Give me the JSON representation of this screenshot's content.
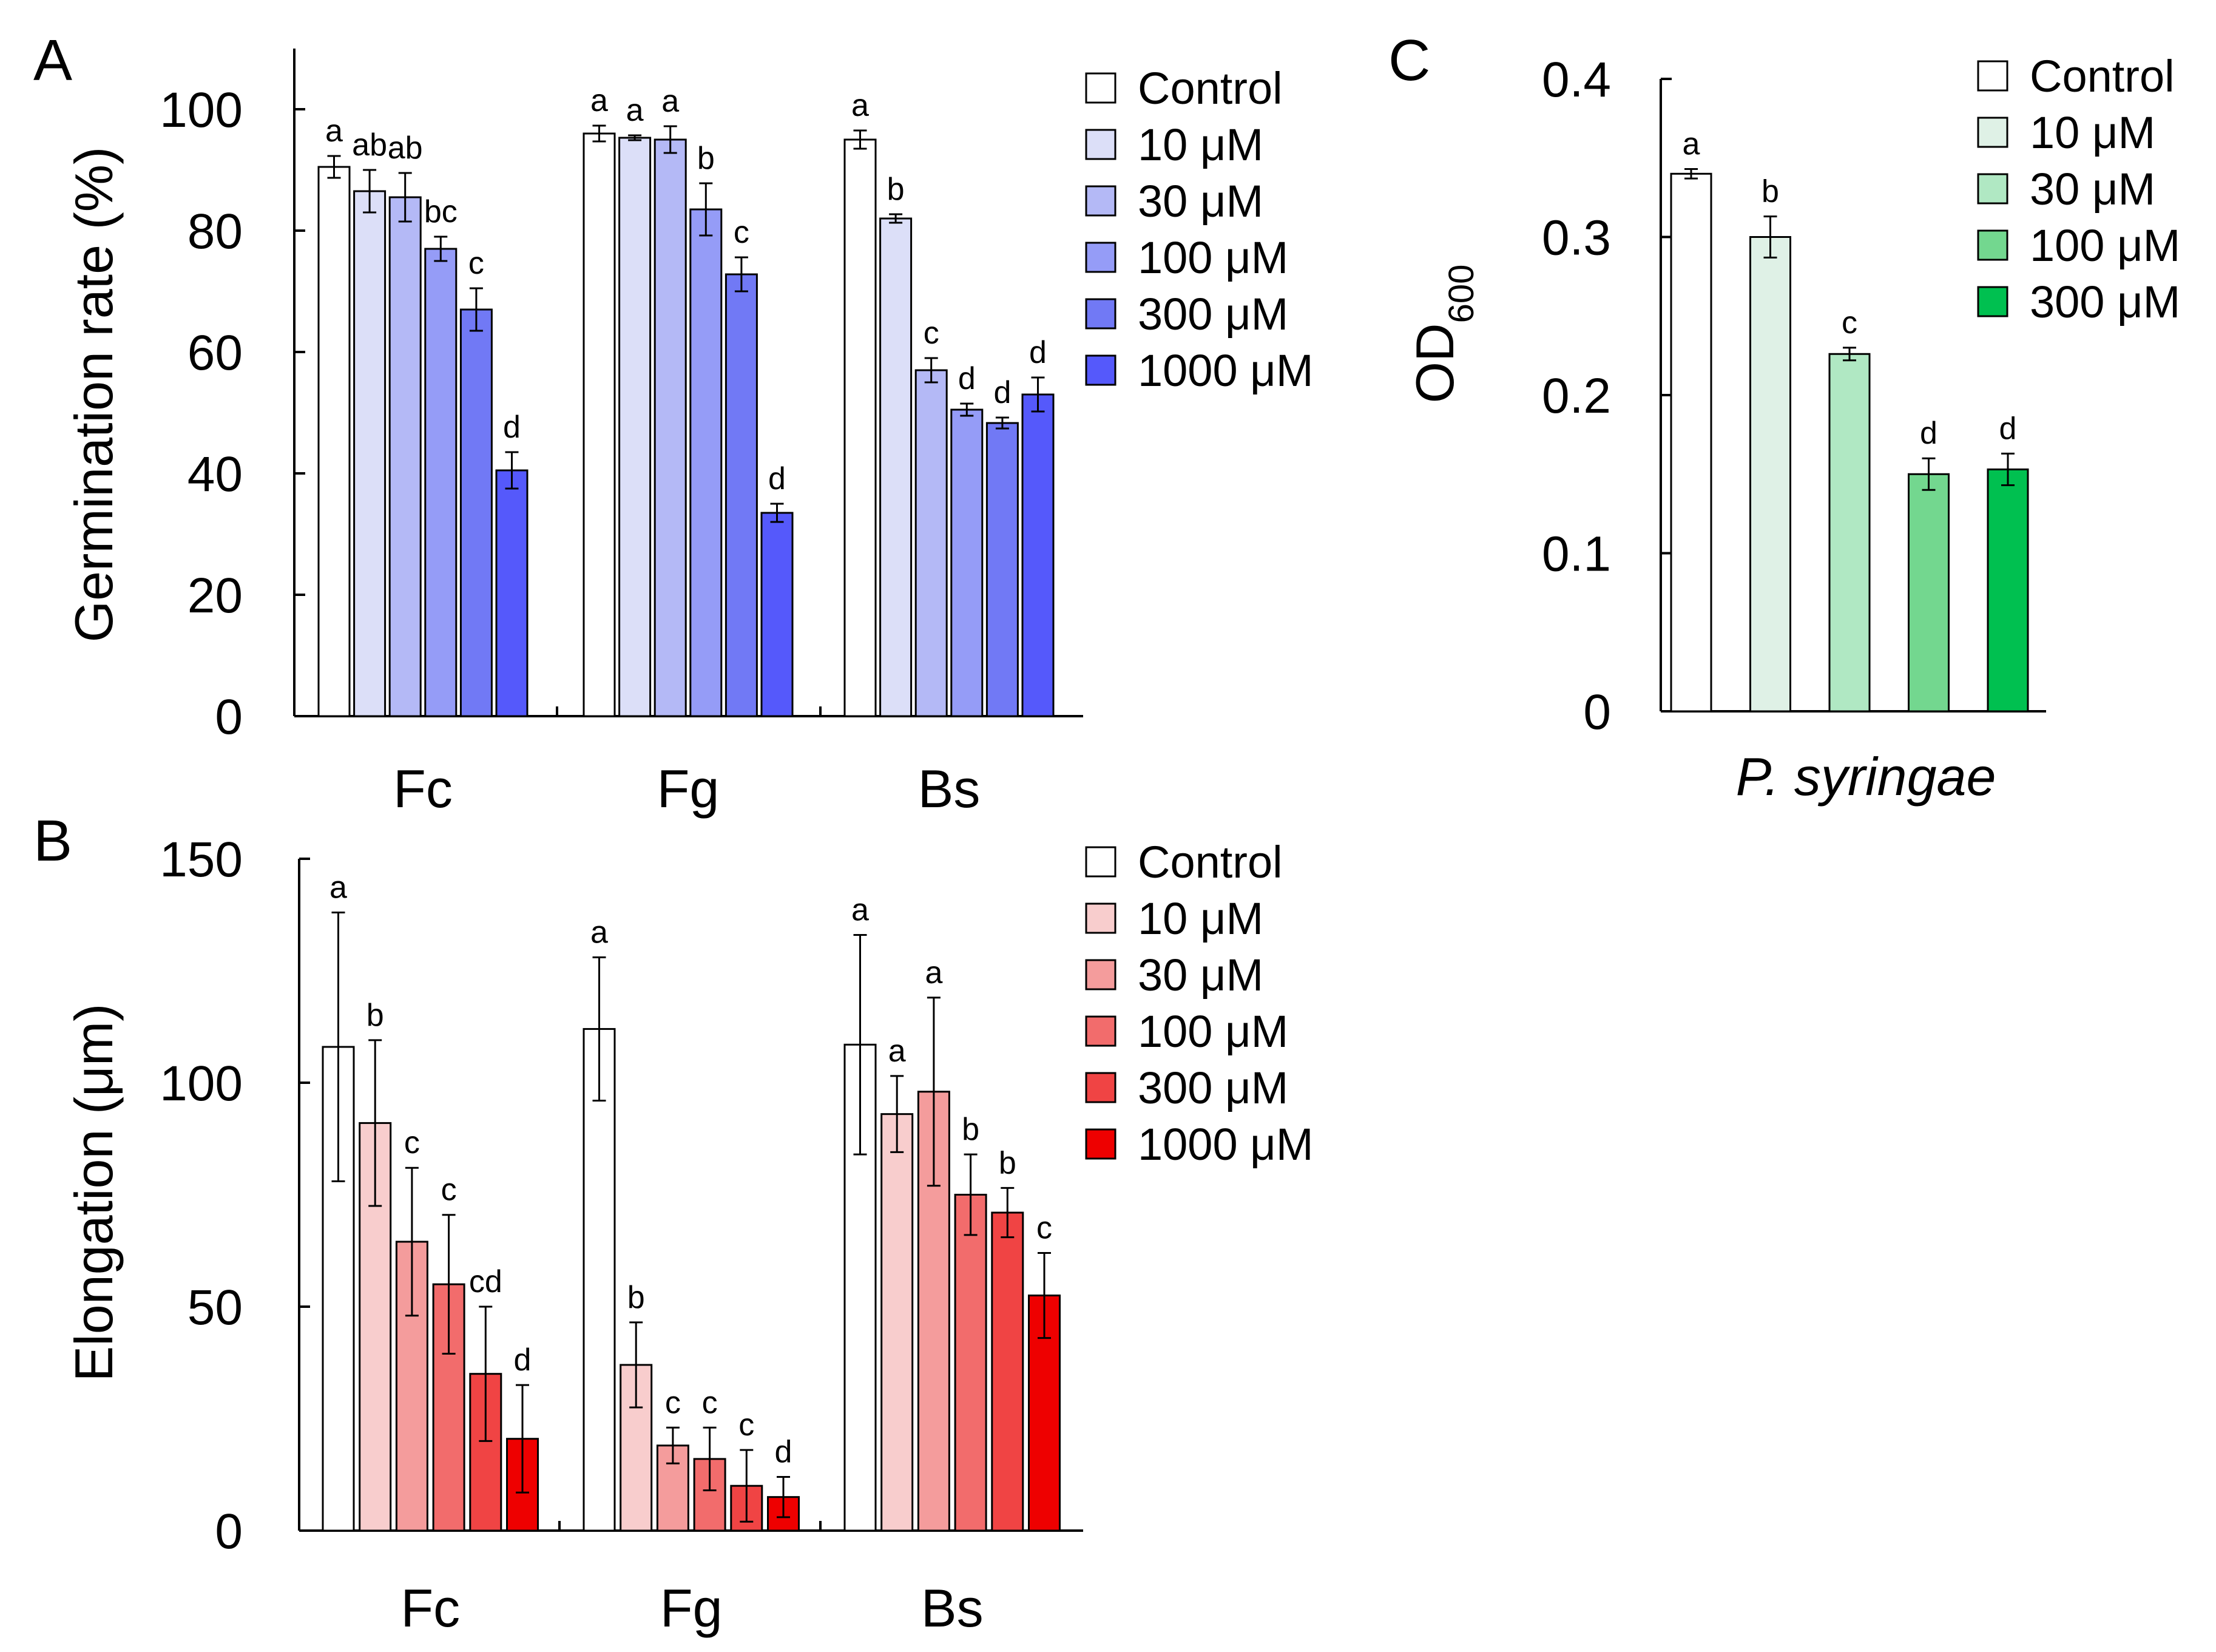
{
  "panels": {
    "A": {
      "letter": "A"
    },
    "B": {
      "letter": "B"
    },
    "C": {
      "letter": "C"
    }
  },
  "colors": {
    "blue": [
      "#ffffff",
      "#dcdff8",
      "#b4b9f6",
      "#959cf7",
      "#7179f5",
      "#5559fb"
    ],
    "red": [
      "#ffffff",
      "#f8cdcd",
      "#f49c9c",
      "#f26c6c",
      "#f04444",
      "#ee0000"
    ],
    "green": [
      "#ffffff",
      "#dff1e6",
      "#b0e8c3",
      "#73d78f",
      "#00c050"
    ]
  },
  "chart_data": [
    {
      "id": "A",
      "type": "bar",
      "ylabel": "Germination rate (%)",
      "ylim": [
        0,
        110
      ],
      "yticks": [
        0,
        20,
        40,
        60,
        80,
        100
      ],
      "ytick_labels": [
        "0",
        "20",
        "40",
        "60",
        "80",
        "100"
      ],
      "categories": [
        "Fc",
        "Fg",
        "Bs"
      ],
      "legend": [
        "Control",
        "10 μM",
        "30 μM",
        "100 μM",
        "300 μM",
        "1000 μM"
      ],
      "series": [
        {
          "name": "Control",
          "values": [
            90.5,
            96,
            95
          ],
          "errors": [
            1.8,
            1.3,
            1.5
          ],
          "sig": [
            "a",
            "a",
            "a"
          ]
        },
        {
          "name": "10 μM",
          "values": [
            86.5,
            95.3,
            82
          ],
          "errors": [
            3.5,
            0.4,
            0.7
          ],
          "sig": [
            "ab",
            "a",
            "b"
          ]
        },
        {
          "name": "30 μM",
          "values": [
            85.5,
            95,
            57
          ],
          "errors": [
            4,
            2.2,
            2
          ],
          "sig": [
            "ab",
            "a",
            "c"
          ]
        },
        {
          "name": "100 μM",
          "values": [
            77,
            83.5,
            50.5
          ],
          "errors": [
            2,
            4.3,
            1
          ],
          "sig": [
            "bc",
            "b",
            "d"
          ]
        },
        {
          "name": "300 μM",
          "values": [
            67,
            72.8,
            48.3
          ],
          "errors": [
            3.5,
            2.8,
            0.9
          ],
          "sig": [
            "c",
            "c",
            "d"
          ]
        },
        {
          "name": "1000 μM",
          "values": [
            40.5,
            33.5,
            53
          ],
          "errors": [
            3,
            1.5,
            2.8
          ],
          "sig": [
            "d",
            "d",
            "d"
          ]
        }
      ]
    },
    {
      "id": "B",
      "type": "bar",
      "ylabel": "Elongation (μm)",
      "ylim": [
        0,
        150
      ],
      "yticks": [
        0,
        50,
        100,
        150
      ],
      "ytick_labels": [
        "0",
        "50",
        "100",
        "150"
      ],
      "categories": [
        "Fc",
        "Fg",
        "Bs"
      ],
      "legend": [
        "Control",
        "10 μM",
        "30 μM",
        "100 μM",
        "300 μM",
        "1000 μM"
      ],
      "series": [
        {
          "name": "Control",
          "values": [
            108,
            112,
            108.5
          ],
          "errors": [
            30,
            16,
            24.5
          ],
          "sig": [
            "a",
            "a",
            "a"
          ]
        },
        {
          "name": "10 μM",
          "values": [
            91,
            37,
            93
          ],
          "errors": [
            18.5,
            9.5,
            8.5
          ],
          "sig": [
            "b",
            "b",
            "a"
          ]
        },
        {
          "name": "30 μM",
          "values": [
            64.5,
            19,
            98
          ],
          "errors": [
            16.5,
            4,
            21
          ],
          "sig": [
            "c",
            "c",
            "a"
          ]
        },
        {
          "name": "100 μM",
          "values": [
            55,
            16,
            75
          ],
          "errors": [
            15.5,
            7,
            9
          ],
          "sig": [
            "c",
            "c",
            "b"
          ]
        },
        {
          "name": "300 μM",
          "values": [
            35,
            10,
            71
          ],
          "errors": [
            15,
            8,
            5.5
          ],
          "sig": [
            "cd",
            "c",
            "b"
          ]
        },
        {
          "name": "1000 μM",
          "values": [
            20.5,
            7.5,
            52.5
          ],
          "errors": [
            12,
            4.5,
            9.5
          ],
          "sig": [
            "d",
            "d",
            "c"
          ]
        }
      ]
    },
    {
      "id": "C",
      "type": "bar",
      "ylabel": "OD",
      "ylabel_sub": "600",
      "ylim": [
        0,
        0.4
      ],
      "yticks": [
        0,
        0.1,
        0.2,
        0.3,
        0.4
      ],
      "ytick_labels": [
        "0",
        "0.1",
        "0.2",
        "0.3",
        "0.4"
      ],
      "categories": [
        "P. syringae"
      ],
      "legend": [
        "Control",
        "10 μM",
        "30 μM",
        "100 μM",
        "300 μM"
      ],
      "series": [
        {
          "name": "Control",
          "values": [
            0.34
          ],
          "errors": [
            0.003
          ],
          "sig": [
            "a"
          ]
        },
        {
          "name": "10 μM",
          "values": [
            0.3
          ],
          "errors": [
            0.013
          ],
          "sig": [
            "b"
          ]
        },
        {
          "name": "30 μM",
          "values": [
            0.226
          ],
          "errors": [
            0.004
          ],
          "sig": [
            "c"
          ]
        },
        {
          "name": "100 μM",
          "values": [
            0.15
          ],
          "errors": [
            0.01
          ],
          "sig": [
            "d"
          ]
        },
        {
          "name": "300 μM",
          "values": [
            0.153
          ],
          "errors": [
            0.01
          ],
          "sig": [
            "d"
          ]
        }
      ]
    }
  ]
}
